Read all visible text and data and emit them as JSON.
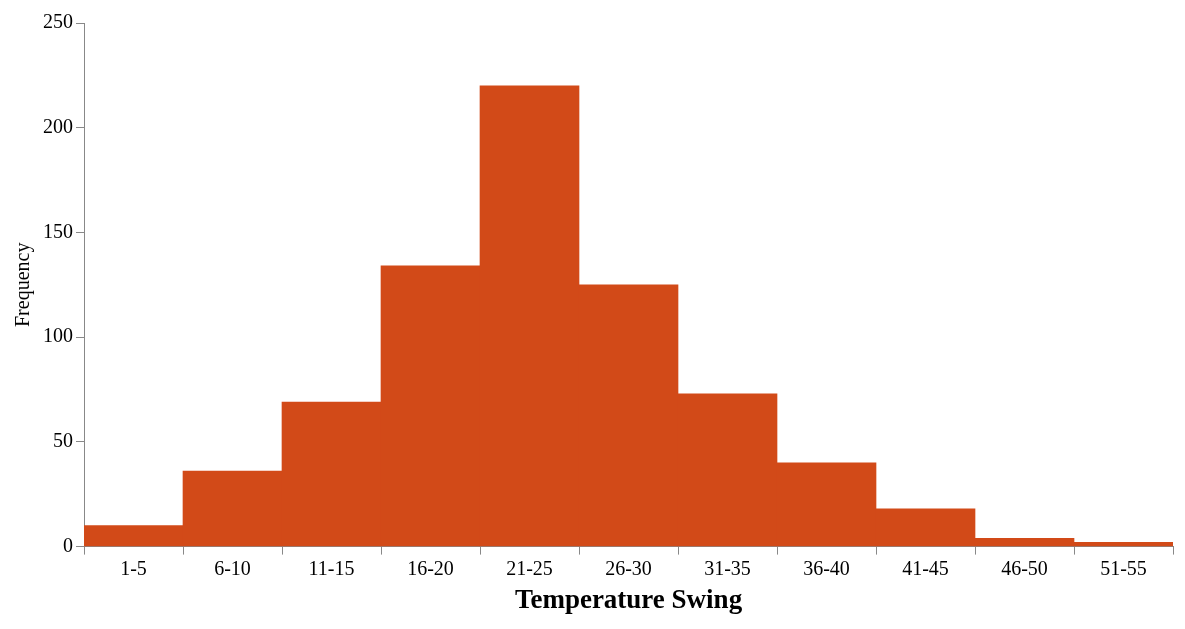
{
  "chart_data": {
    "type": "bar",
    "xlabel": "Temperature Swing",
    "ylabel": "Frequency",
    "categories": [
      "1-5",
      "6-10",
      "11-15",
      "16-20",
      "21-25",
      "26-30",
      "31-35",
      "36-40",
      "41-45",
      "46-50",
      "51-55"
    ],
    "values": [
      10,
      36,
      69,
      134,
      220,
      125,
      73,
      40,
      18,
      4,
      2
    ],
    "color": "#d24a18",
    "ylim": [
      0,
      250
    ],
    "yticks": [
      0,
      50,
      100,
      150,
      200,
      250
    ],
    "grid": false,
    "legend": false
  }
}
